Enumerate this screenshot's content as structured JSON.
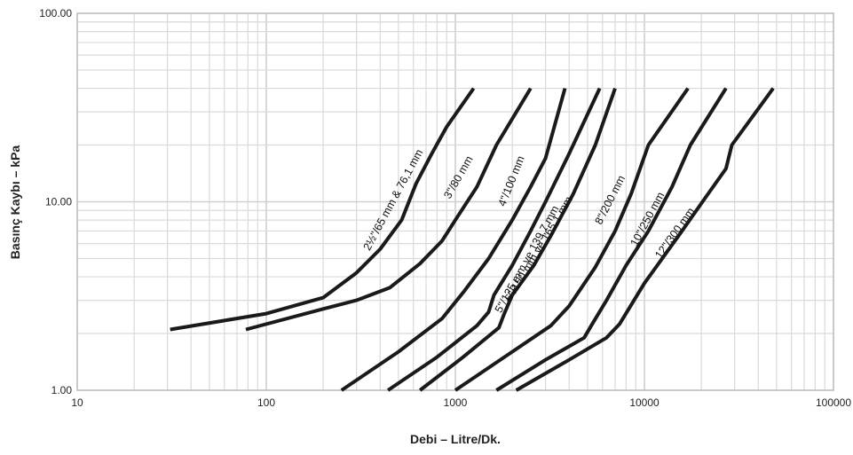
{
  "chart_data": {
    "type": "line",
    "title": "",
    "xlabel": "Debi – Litre/Dk.",
    "ylabel": "Basınç Kaybı – kPa",
    "x_scale": "log",
    "y_scale": "log",
    "xlim": [
      10,
      100000
    ],
    "ylim": [
      1,
      100
    ],
    "x_ticks": [
      "10",
      "100",
      "1000",
      "10000",
      "100000"
    ],
    "y_ticks": [
      "1.00",
      "10.00",
      "100.00"
    ],
    "grid": true,
    "legend": "none",
    "line_color": "#1a1a1a",
    "series": [
      {
        "name": "2½\"/65 mm & 76,1 mm",
        "points": [
          [
            31,
            2.1
          ],
          [
            100,
            2.55
          ],
          [
            200,
            3.1
          ],
          [
            300,
            4.2
          ],
          [
            400,
            5.6
          ],
          [
            520,
            8.0
          ],
          [
            620,
            12.5
          ],
          [
            750,
            18.0
          ],
          [
            900,
            25.0
          ],
          [
            1250,
            40.0
          ]
        ]
      },
      {
        "name": "3\"/80 mm",
        "points": [
          [
            78,
            2.1
          ],
          [
            200,
            2.7
          ],
          [
            300,
            3.0
          ],
          [
            450,
            3.5
          ],
          [
            650,
            4.7
          ],
          [
            850,
            6.2
          ],
          [
            1000,
            8.0
          ],
          [
            1300,
            12.0
          ],
          [
            1650,
            20.0
          ],
          [
            2500,
            40.0
          ]
        ]
      },
      {
        "name": "4\"/100 mm",
        "points": [
          [
            250,
            1.0
          ],
          [
            500,
            1.6
          ],
          [
            850,
            2.4
          ],
          [
            1100,
            3.3
          ],
          [
            1500,
            5.0
          ],
          [
            2000,
            8.0
          ],
          [
            2500,
            12.0
          ],
          [
            3000,
            17.0
          ],
          [
            3800,
            40.0
          ]
        ]
      },
      {
        "name": "5\"/125 mm ve 139,7 mm",
        "points": [
          [
            440,
            1.0
          ],
          [
            800,
            1.5
          ],
          [
            1300,
            2.2
          ],
          [
            1500,
            2.6
          ],
          [
            1600,
            3.2
          ],
          [
            2000,
            4.6
          ],
          [
            2500,
            7.0
          ],
          [
            3000,
            10.0
          ],
          [
            4000,
            18.0
          ],
          [
            5800,
            40.0
          ]
        ]
      },
      {
        "name": "6\"/150 mm ve 165,1 mm",
        "points": [
          [
            650,
            1.0
          ],
          [
            1100,
            1.5
          ],
          [
            1700,
            2.15
          ],
          [
            1800,
            2.5
          ],
          [
            2000,
            3.2
          ],
          [
            2600,
            4.6
          ],
          [
            3200,
            6.6
          ],
          [
            4200,
            11.0
          ],
          [
            5500,
            20.0
          ],
          [
            7000,
            40.0
          ]
        ]
      },
      {
        "name": "8\"/200 mm",
        "points": [
          [
            1000,
            1.0
          ],
          [
            2000,
            1.6
          ],
          [
            3200,
            2.2
          ],
          [
            4000,
            2.8
          ],
          [
            5500,
            4.5
          ],
          [
            7000,
            7.0
          ],
          [
            8500,
            11.0
          ],
          [
            10500,
            20.0
          ],
          [
            17000,
            40.0
          ]
        ]
      },
      {
        "name": "10\"/250 mm",
        "points": [
          [
            1650,
            1.0
          ],
          [
            3000,
            1.45
          ],
          [
            4800,
            1.9
          ],
          [
            5300,
            2.25
          ],
          [
            6300,
            3.0
          ],
          [
            8000,
            4.6
          ],
          [
            10500,
            7.0
          ],
          [
            14000,
            12.0
          ],
          [
            17500,
            20.0
          ],
          [
            27000,
            40.0
          ]
        ]
      },
      {
        "name": "12\"/300 mm",
        "points": [
          [
            2100,
            1.0
          ],
          [
            4000,
            1.45
          ],
          [
            6300,
            1.9
          ],
          [
            7400,
            2.25
          ],
          [
            10000,
            3.7
          ],
          [
            15000,
            6.5
          ],
          [
            21000,
            10.5
          ],
          [
            27000,
            15.0
          ],
          [
            29000,
            20.0
          ],
          [
            48000,
            40.0
          ]
        ]
      }
    ]
  }
}
